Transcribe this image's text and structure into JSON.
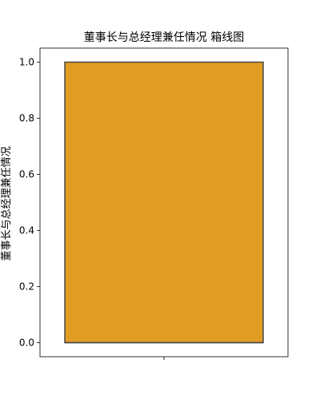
{
  "chart_data": {
    "type": "box",
    "title": "董事长与总经理兼任情况 箱线图",
    "ylabel": "董事长与总经理兼任情况",
    "xlabel": "",
    "ylim": [
      -0.05,
      1.05
    ],
    "yticks": [
      0.0,
      0.2,
      0.4,
      0.6,
      0.8,
      1.0
    ],
    "ytick_labels": [
      "0.0",
      "0.2",
      "0.4",
      "0.6",
      "0.8",
      "1.0"
    ],
    "grid": false,
    "series": [
      {
        "min": 0.0,
        "q1": 0.0,
        "median": 0.0,
        "q3": 1.0,
        "max": 1.0
      }
    ],
    "colors": {
      "box_fill": "#e19c24",
      "box_edge": "#4a4a4a",
      "axis": "#000000"
    }
  }
}
